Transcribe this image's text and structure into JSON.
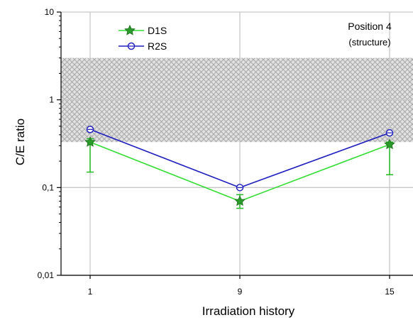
{
  "chart_data": {
    "type": "line",
    "title": "",
    "xlabel": "Irradiation history",
    "ylabel": "C/E ratio",
    "yscale": "log",
    "ylim": [
      0.01,
      10
    ],
    "yticks": [
      0.01,
      0.1,
      1,
      10
    ],
    "ytick_labels": [
      "0,01",
      "0,1",
      "1",
      "10"
    ],
    "categories": [
      "1",
      "9",
      "15"
    ],
    "grid": true,
    "legend_position": "top-left",
    "annotation": [
      "Position 4",
      "(structure)"
    ],
    "band": {
      "range": [
        0.33,
        3.0
      ],
      "fill": "crosshatch",
      "color": "#b4b4b4"
    },
    "series": [
      {
        "name": "D1S",
        "color": "#33dd33",
        "marker": "star",
        "values": [
          0.33,
          0.07,
          0.31
        ],
        "error_low": [
          0.15,
          0.058,
          0.14
        ],
        "error_high": [
          0.36,
          0.083,
          0.33
        ]
      },
      {
        "name": "R2S",
        "color": "#1f1fbf",
        "marker": "circle",
        "values": [
          0.46,
          0.1,
          0.42
        ]
      }
    ]
  }
}
